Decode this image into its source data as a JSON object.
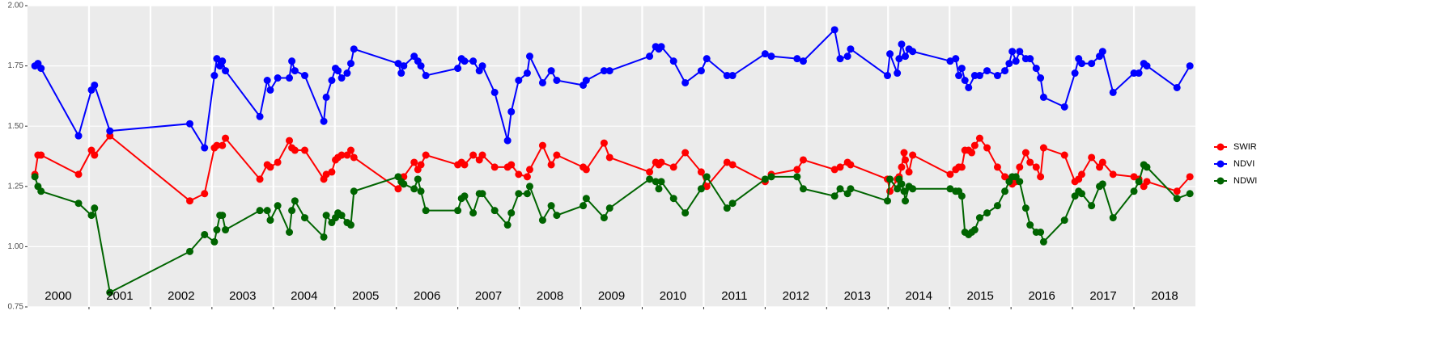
{
  "chart_data": {
    "type": "line",
    "xlim": [
      2000,
      2019
    ],
    "xgrid": [
      2001,
      2002,
      2003,
      2004,
      2005,
      2006,
      2007,
      2008,
      2009,
      2010,
      2011,
      2012,
      2013,
      2014,
      2015,
      2016,
      2017,
      2018
    ],
    "year_labels": [
      "2000",
      "2001",
      "2002",
      "2003",
      "2004",
      "2005",
      "2006",
      "2007",
      "2008",
      "2009",
      "2010",
      "2011",
      "2012",
      "2013",
      "2014",
      "2015",
      "2016",
      "2017",
      "2018"
    ],
    "ylim": [
      0.75,
      2.0
    ],
    "yticks": [
      {
        "value": 0.75,
        "label": "0.75"
      },
      {
        "value": 1.0,
        "label": "1.00"
      },
      {
        "value": 1.25,
        "label": "1.25"
      },
      {
        "value": 1.5,
        "label": "1.50"
      },
      {
        "value": 1.75,
        "label": "1.75"
      },
      {
        "value": 2.0,
        "label": "2.00"
      }
    ],
    "grid": true,
    "legend": "right",
    "series": [
      {
        "name": "SWIR",
        "color": "#ff0000",
        "x": [
          2000.12,
          2000.17,
          2000.22,
          2000.83,
          2001.04,
          2001.09,
          2001.34,
          2002.64,
          2002.88,
          2003.04,
          2003.08,
          2003.17,
          2003.22,
          2003.78,
          2003.9,
          2003.95,
          2004.07,
          2004.26,
          2004.3,
          2004.35,
          2004.51,
          2004.82,
          2004.86,
          2004.95,
          2005.01,
          2005.05,
          2005.11,
          2005.2,
          2005.26,
          2005.31,
          2006.03,
          2006.08,
          2006.12,
          2006.29,
          2006.35,
          2006.4,
          2006.48,
          2007.0,
          2007.06,
          2007.11,
          2007.25,
          2007.35,
          2007.4,
          2007.6,
          2007.81,
          2007.87,
          2007.99,
          2008.13,
          2008.17,
          2008.38,
          2008.52,
          2008.61,
          2009.04,
          2009.09,
          2009.38,
          2009.47,
          2010.12,
          2010.22,
          2010.27,
          2010.31,
          2010.51,
          2010.7,
          2010.96,
          2011.05,
          2011.38,
          2011.47,
          2012.0,
          2012.1,
          2012.52,
          2012.62,
          2013.13,
          2013.22,
          2013.34,
          2013.39,
          2013.99,
          2014.03,
          2014.15,
          2014.18,
          2014.22,
          2014.26,
          2014.28,
          2014.34,
          2014.4,
          2015.01,
          2015.1,
          2015.15,
          2015.2,
          2015.25,
          2015.31,
          2015.36,
          2015.41,
          2015.49,
          2015.61,
          2015.78,
          2015.9,
          2015.97,
          2016.02,
          2016.08,
          2016.14,
          2016.24,
          2016.31,
          2016.41,
          2016.48,
          2016.53,
          2016.87,
          2017.04,
          2017.1,
          2017.15,
          2017.31,
          2017.44,
          2017.49,
          2017.66,
          2018.0,
          2018.08,
          2018.16,
          2018.21,
          2018.7,
          2018.91
        ],
        "values": [
          1.3,
          1.38,
          1.38,
          1.3,
          1.4,
          1.38,
          1.46,
          1.19,
          1.22,
          1.41,
          1.42,
          1.42,
          1.45,
          1.28,
          1.34,
          1.33,
          1.35,
          1.44,
          1.41,
          1.4,
          1.4,
          1.28,
          1.3,
          1.31,
          1.36,
          1.37,
          1.38,
          1.38,
          1.4,
          1.37,
          1.24,
          1.27,
          1.29,
          1.35,
          1.32,
          1.34,
          1.38,
          1.34,
          1.35,
          1.34,
          1.38,
          1.36,
          1.38,
          1.33,
          1.33,
          1.34,
          1.3,
          1.29,
          1.32,
          1.42,
          1.34,
          1.38,
          1.33,
          1.32,
          1.43,
          1.37,
          1.31,
          1.35,
          1.34,
          1.35,
          1.33,
          1.39,
          1.31,
          1.25,
          1.35,
          1.34,
          1.27,
          1.3,
          1.32,
          1.36,
          1.32,
          1.33,
          1.35,
          1.34,
          1.28,
          1.23,
          1.28,
          1.29,
          1.33,
          1.39,
          1.36,
          1.31,
          1.38,
          1.3,
          1.32,
          1.33,
          1.33,
          1.4,
          1.4,
          1.39,
          1.42,
          1.45,
          1.41,
          1.33,
          1.29,
          1.28,
          1.26,
          1.27,
          1.33,
          1.39,
          1.35,
          1.33,
          1.29,
          1.41,
          1.38,
          1.27,
          1.28,
          1.3,
          1.37,
          1.33,
          1.35,
          1.3,
          1.29,
          1.28,
          1.25,
          1.27,
          1.23,
          1.29
        ]
      },
      {
        "name": "NDVI",
        "color": "#0000ff",
        "x": [
          2000.12,
          2000.17,
          2000.22,
          2000.83,
          2001.04,
          2001.09,
          2001.34,
          2002.64,
          2002.88,
          2003.04,
          2003.08,
          2003.13,
          2003.17,
          2003.22,
          2003.78,
          2003.9,
          2003.95,
          2004.07,
          2004.26,
          2004.3,
          2004.35,
          2004.51,
          2004.82,
          2004.86,
          2004.95,
          2005.01,
          2005.05,
          2005.11,
          2005.2,
          2005.26,
          2005.31,
          2006.03,
          2006.08,
          2006.12,
          2006.29,
          2006.35,
          2006.4,
          2006.48,
          2007.0,
          2007.06,
          2007.11,
          2007.25,
          2007.35,
          2007.4,
          2007.6,
          2007.81,
          2007.87,
          2007.99,
          2008.13,
          2008.17,
          2008.38,
          2008.52,
          2008.61,
          2009.04,
          2009.09,
          2009.38,
          2009.47,
          2010.12,
          2010.22,
          2010.27,
          2010.31,
          2010.51,
          2010.7,
          2010.96,
          2011.05,
          2011.38,
          2011.47,
          2012.0,
          2012.1,
          2012.52,
          2012.62,
          2013.13,
          2013.22,
          2013.34,
          2013.39,
          2013.99,
          2014.03,
          2014.15,
          2014.18,
          2014.22,
          2014.28,
          2014.34,
          2014.4,
          2015.01,
          2015.1,
          2015.15,
          2015.2,
          2015.25,
          2015.31,
          2015.41,
          2015.49,
          2015.61,
          2015.78,
          2015.9,
          2015.97,
          2016.02,
          2016.08,
          2016.14,
          2016.24,
          2016.31,
          2016.41,
          2016.48,
          2016.53,
          2016.87,
          2017.04,
          2017.1,
          2017.15,
          2017.31,
          2017.44,
          2017.49,
          2017.66,
          2018.0,
          2018.08,
          2018.16,
          2018.21,
          2018.7,
          2018.91
        ],
        "values": [
          1.75,
          1.76,
          1.74,
          1.46,
          1.65,
          1.67,
          1.48,
          1.51,
          1.41,
          1.71,
          1.78,
          1.75,
          1.77,
          1.73,
          1.54,
          1.69,
          1.65,
          1.7,
          1.7,
          1.77,
          1.73,
          1.71,
          1.52,
          1.62,
          1.69,
          1.74,
          1.73,
          1.7,
          1.72,
          1.76,
          1.82,
          1.76,
          1.72,
          1.75,
          1.79,
          1.77,
          1.75,
          1.71,
          1.74,
          1.78,
          1.77,
          1.77,
          1.73,
          1.75,
          1.64,
          1.44,
          1.56,
          1.69,
          1.72,
          1.79,
          1.68,
          1.73,
          1.69,
          1.67,
          1.69,
          1.73,
          1.73,
          1.79,
          1.83,
          1.82,
          1.83,
          1.77,
          1.68,
          1.73,
          1.78,
          1.71,
          1.71,
          1.8,
          1.79,
          1.78,
          1.77,
          1.9,
          1.78,
          1.79,
          1.82,
          1.71,
          1.8,
          1.72,
          1.78,
          1.84,
          1.79,
          1.82,
          1.81,
          1.77,
          1.78,
          1.71,
          1.74,
          1.69,
          1.66,
          1.71,
          1.71,
          1.73,
          1.71,
          1.73,
          1.76,
          1.81,
          1.77,
          1.81,
          1.78,
          1.78,
          1.74,
          1.7,
          1.62,
          1.58,
          1.72,
          1.78,
          1.76,
          1.76,
          1.79,
          1.81,
          1.64,
          1.72,
          1.72,
          1.76,
          1.75,
          1.66,
          1.75
        ]
      },
      {
        "name": "NDWI",
        "color": "#006400",
        "x": [
          2000.12,
          2000.17,
          2000.22,
          2000.83,
          2001.04,
          2001.09,
          2001.34,
          2002.64,
          2002.88,
          2003.04,
          2003.08,
          2003.13,
          2003.17,
          2003.22,
          2003.78,
          2003.9,
          2003.95,
          2004.07,
          2004.26,
          2004.3,
          2004.35,
          2004.51,
          2004.82,
          2004.86,
          2004.95,
          2005.01,
          2005.05,
          2005.11,
          2005.2,
          2005.26,
          2005.31,
          2006.03,
          2006.08,
          2006.12,
          2006.29,
          2006.35,
          2006.4,
          2006.48,
          2007.0,
          2007.06,
          2007.11,
          2007.25,
          2007.35,
          2007.4,
          2007.6,
          2007.81,
          2007.87,
          2007.99,
          2008.13,
          2008.17,
          2008.38,
          2008.52,
          2008.61,
          2009.04,
          2009.09,
          2009.38,
          2009.47,
          2010.12,
          2010.22,
          2010.27,
          2010.31,
          2010.51,
          2010.7,
          2010.96,
          2011.05,
          2011.38,
          2011.47,
          2012.0,
          2012.1,
          2012.52,
          2012.62,
          2013.13,
          2013.22,
          2013.34,
          2013.39,
          2013.99,
          2014.03,
          2014.15,
          2014.18,
          2014.22,
          2014.26,
          2014.28,
          2014.34,
          2014.4,
          2015.01,
          2015.1,
          2015.15,
          2015.2,
          2015.25,
          2015.31,
          2015.36,
          2015.41,
          2015.49,
          2015.61,
          2015.78,
          2015.9,
          2015.97,
          2016.02,
          2016.08,
          2016.14,
          2016.24,
          2016.31,
          2016.41,
          2016.48,
          2016.53,
          2016.87,
          2017.04,
          2017.1,
          2017.15,
          2017.31,
          2017.44,
          2017.49,
          2017.66,
          2018.0,
          2018.08,
          2018.16,
          2018.21,
          2018.7,
          2018.91
        ],
        "values": [
          1.29,
          1.25,
          1.23,
          1.18,
          1.13,
          1.16,
          0.81,
          0.98,
          1.05,
          1.02,
          1.07,
          1.13,
          1.13,
          1.07,
          1.15,
          1.15,
          1.11,
          1.17,
          1.06,
          1.15,
          1.19,
          1.12,
          1.04,
          1.13,
          1.1,
          1.12,
          1.14,
          1.13,
          1.1,
          1.09,
          1.23,
          1.29,
          1.27,
          1.26,
          1.24,
          1.28,
          1.23,
          1.15,
          1.15,
          1.2,
          1.21,
          1.14,
          1.22,
          1.22,
          1.15,
          1.09,
          1.14,
          1.22,
          1.22,
          1.25,
          1.11,
          1.17,
          1.13,
          1.17,
          1.2,
          1.12,
          1.16,
          1.28,
          1.27,
          1.24,
          1.27,
          1.2,
          1.14,
          1.24,
          1.29,
          1.16,
          1.18,
          1.28,
          1.29,
          1.29,
          1.24,
          1.21,
          1.24,
          1.22,
          1.24,
          1.19,
          1.28,
          1.24,
          1.28,
          1.26,
          1.23,
          1.19,
          1.25,
          1.24,
          1.24,
          1.23,
          1.23,
          1.21,
          1.06,
          1.05,
          1.06,
          1.07,
          1.12,
          1.14,
          1.17,
          1.23,
          1.27,
          1.29,
          1.29,
          1.27,
          1.16,
          1.09,
          1.06,
          1.06,
          1.02,
          1.11,
          1.21,
          1.23,
          1.22,
          1.17,
          1.25,
          1.26,
          1.12,
          1.23,
          1.27,
          1.34,
          1.33,
          1.2,
          1.22
        ]
      }
    ]
  }
}
